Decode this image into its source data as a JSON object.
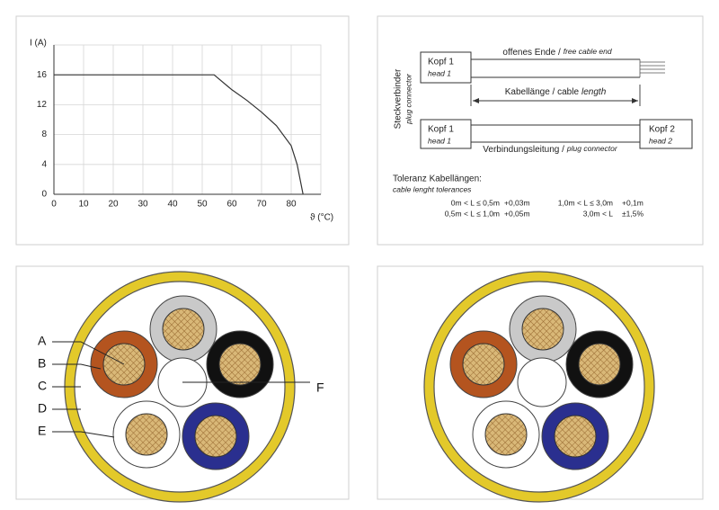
{
  "chart_data": {
    "type": "line",
    "ylabel": "I (A)",
    "xlabel": "ϑ (°C)",
    "x": [
      0,
      54,
      60,
      65,
      70,
      75,
      80,
      82,
      84
    ],
    "series": [
      {
        "color": "#333333",
        "values": [
          16,
          16,
          14,
          12.6,
          11,
          9.2,
          6.5,
          4,
          0
        ]
      }
    ],
    "xlim": [
      0,
      90
    ],
    "xticks": [
      0,
      10,
      20,
      30,
      40,
      50,
      60,
      70,
      80
    ],
    "ylim": [
      0,
      20
    ],
    "yticks": [
      0,
      4,
      8,
      12,
      16
    ],
    "grid": true
  },
  "diagram": {
    "head_1_top": {
      "de": "Kopf 1",
      "en": "head 1"
    },
    "free_end": {
      "de": "offenes Ende /",
      "en": "free cable end"
    },
    "cable_length": {
      "de": "Kabellänge / cable",
      "en": "length"
    },
    "side_label": {
      "de": "Steckverbinder",
      "en": "plug connector"
    },
    "head_1_bottom": {
      "de": "Kopf 1",
      "en": "head 1"
    },
    "head_2": {
      "de": "Kopf 2",
      "en": "head 2"
    },
    "connector": {
      "de": "Verbindungsleitung /",
      "en": "plug connector"
    },
    "tolerances": {
      "title": "Toleranz Kabellängen:",
      "subtitle": "cable lenght tolerances",
      "rows": [
        [
          "0m < L ≤ 0,5m",
          "+0,03m",
          "1,0m < L ≤ 3,0m",
          "+0,1m"
        ],
        [
          "0,5m < L ≤ 1,0m",
          "+0,05m",
          "3,0m < L",
          "±1,5%"
        ]
      ]
    }
  },
  "cross_section": {
    "labels": [
      "A",
      "B",
      "C",
      "D",
      "E",
      "F"
    ]
  }
}
